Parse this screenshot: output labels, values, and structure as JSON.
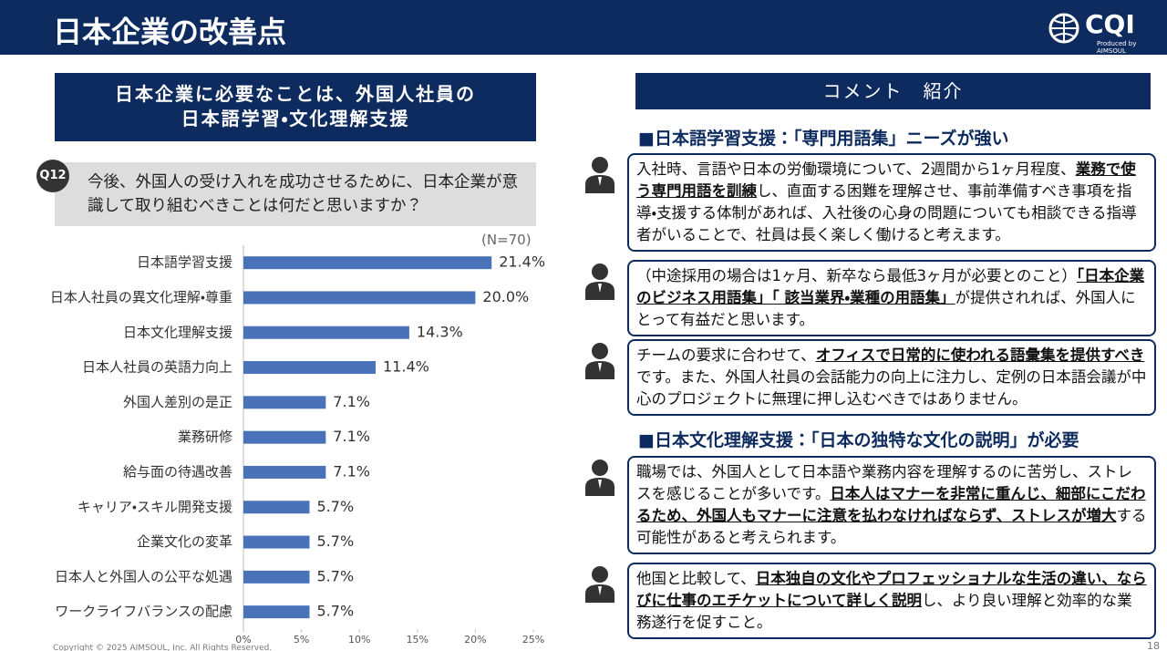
{
  "header": {
    "title": "日本企業の改善点",
    "logo": "CQI",
    "logo_sub": "Produced by AIMSOUL"
  },
  "left": {
    "banner": [
      "日本企業に必要なことは、外国人社員の",
      "日本語学習・文化理解支援"
    ],
    "question_no": "Q12",
    "question": "今後、外国人の受け入れを成功させるために、日本企業が意識して取り組むべきことは何だと思いますか？",
    "n": "(N=70)"
  },
  "chart_data": {
    "type": "hbar",
    "color": "#4a72b8",
    "categories": [
      "日本語学習支援",
      "日本人社員の異文化理解・尊重",
      "日本文化理解支援",
      "日本人社員の英語力向上",
      "外国人差別の是正",
      "業務研修",
      "給与面の待遇改善",
      "キャリア・スキル開発支援",
      "企業文化の変革",
      "日本人と外国人の公平な処遇",
      "ワークライフバランスの配慮"
    ],
    "values": [
      21.4,
      20.0,
      14.3,
      11.4,
      7.1,
      7.1,
      7.1,
      5.7,
      5.7,
      5.7,
      5.7
    ],
    "value_labels": [
      "21.4%",
      "20.0%",
      "14.3%",
      "11.4%",
      "7.1%",
      "7.1%",
      "7.1%",
      "5.7%",
      "5.7%",
      "5.7%",
      "5.7%"
    ],
    "xlim": [
      0,
      25
    ],
    "xticks": [
      {
        "value": 0,
        "label": "0%"
      },
      {
        "value": 5,
        "label": "5%"
      },
      {
        "value": 10,
        "label": "10%"
      },
      {
        "value": 15,
        "label": "15%"
      },
      {
        "value": 20,
        "label": "20%"
      },
      {
        "value": 25,
        "label": "25%"
      }
    ]
  },
  "right": {
    "banner": "コメント　紹介",
    "sections": [
      {
        "heading": "■日本語学習支援：「専門用語集」ニーズが強い",
        "comments": [
          [
            {
              "text": "入社時、言語や日本の労働環境について、2週間から1ヶ月程度、"
            },
            {
              "text": "業務で使う専門用語を訓練",
              "underline": true
            },
            {
              "text": "し、直面する困難を理解させ、事前準備すべき事項を指導・支援する体制があれば、入社後の心身の問題についても相談できる指導者がいることで、社員は長く楽しく働けると考えます。"
            }
          ],
          [
            {
              "text": "（中途採用の場合は1ヶ月、新卒なら最低3ヶ月が必要とのこと）"
            },
            {
              "text": "「日本企業のビジネス用語集」「 該当業界・業種の用語集」",
              "underline": true
            },
            {
              "text": "が提供されれば、外国人にとって有益だと思います。"
            }
          ],
          [
            {
              "text": "チームの要求に合わせて、"
            },
            {
              "text": "オフィスで日常的に使われる語彙集を提供すべき",
              "underline": true
            },
            {
              "text": "です。また、外国人社員の会話能力の向上に注力し、定例の日本語会議が中心のプロジェクトに無理に押し込むべきではありません。"
            }
          ]
        ]
      },
      {
        "heading": "■日本文化理解支援：「日本の独特な文化の説明」が必要",
        "comments": [
          [
            {
              "text": "職場では、外国人として日本語や業務内容を理解するのに苦労し、ストレスを感じることが多いです。"
            },
            {
              "text": "日本人はマナーを非常に重んじ、細部にこだわるため、外国人もマナーに注意を払わなければならず、ストレスが増大",
              "underline": true
            },
            {
              "text": "する可能性があると考えられます。"
            }
          ],
          [
            {
              "text": "他国と比較して、"
            },
            {
              "text": "日本独自の文化やプロフェッショナルな生活の違い、ならびに仕事のエチケットについて詳しく説明",
              "underline": true
            },
            {
              "text": "し、より良い理解と効率的な業務遂行を促すこと。"
            }
          ]
        ]
      }
    ]
  },
  "footer": {
    "copyright": "Copyright © 2025 AIMSOUL, Inc. All Rights Reserved.",
    "page": "18"
  }
}
